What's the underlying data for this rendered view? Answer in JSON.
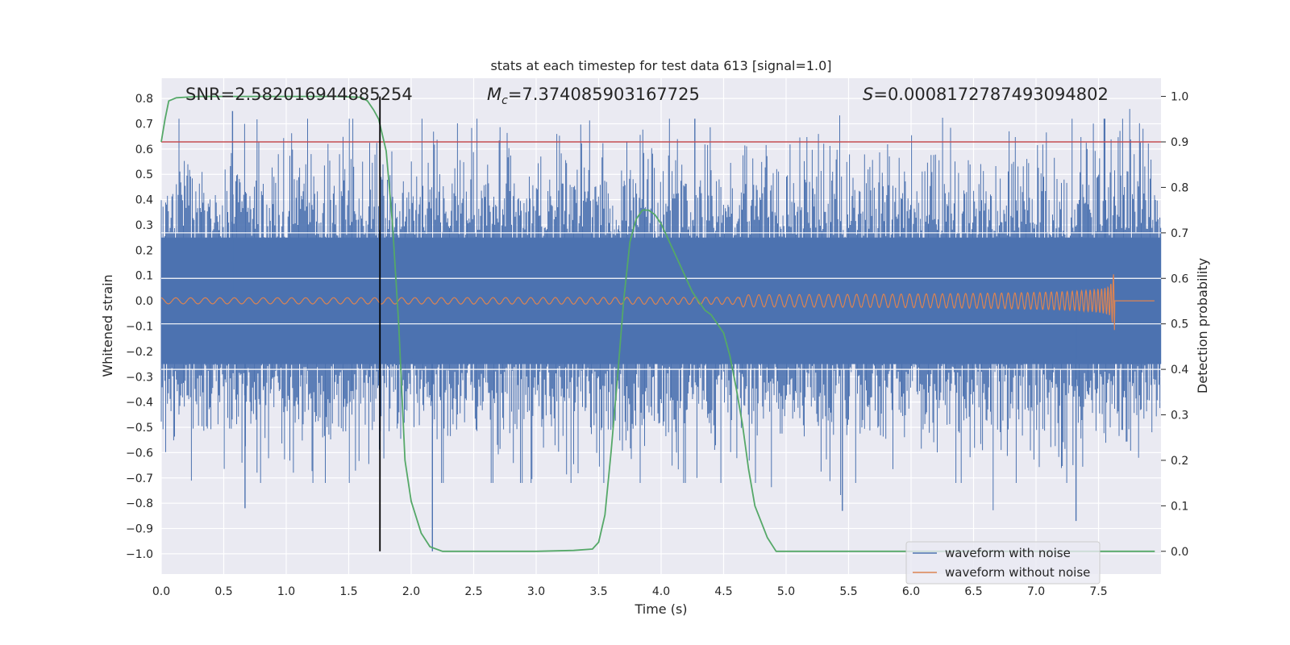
{
  "chart_data": {
    "type": "line",
    "title": "stats at each timestep for test data 613 [signal=1.0]",
    "xlabel": "Time (s)",
    "ylabel": "Whitened strain",
    "y2label": "Detection probability",
    "xlim": [
      0,
      8
    ],
    "ylim": [
      -1.08,
      0.88
    ],
    "y2lim": [
      -0.05,
      1.04
    ],
    "xticks": [
      0.0,
      0.5,
      1.0,
      1.5,
      2.0,
      2.5,
      3.0,
      3.5,
      4.0,
      4.5,
      5.0,
      5.5,
      6.0,
      6.5,
      7.0,
      7.5
    ],
    "xtick_labels": [
      "0.0",
      "0.5",
      "1.0",
      "1.5",
      "2.0",
      "2.5",
      "3.0",
      "3.5",
      "4.0",
      "4.5",
      "5.0",
      "5.5",
      "6.0",
      "6.5",
      "7.0",
      "7.5"
    ],
    "yticks": [
      0.8,
      0.7,
      0.6,
      0.5,
      0.4,
      0.3,
      0.2,
      0.1,
      0.0,
      -0.1,
      -0.2,
      -0.3,
      -0.4,
      -0.5,
      -0.6,
      -0.7,
      -0.8,
      -0.9,
      -1.0
    ],
    "ytick_labels": [
      "0.8",
      "0.7",
      "0.6",
      "0.5",
      "0.4",
      "0.3",
      "0.2",
      "0.1",
      "0.0",
      "−0.1",
      "−0.2",
      "−0.3",
      "−0.4",
      "−0.5",
      "−0.6",
      "−0.7",
      "−0.8",
      "−0.9",
      "−1.0"
    ],
    "y2ticks": [
      1.0,
      0.9,
      0.8,
      0.7,
      0.6,
      0.5,
      0.4,
      0.3,
      0.2,
      0.1,
      0.0
    ],
    "y2tick_labels": [
      "1.0",
      "0.9",
      "0.8",
      "0.7",
      "0.6",
      "0.5",
      "0.4",
      "0.3",
      "0.2",
      "0.1",
      "0.0"
    ],
    "annotations": {
      "snr": "SNR=2.582016944885254",
      "mc_symbol": "M",
      "mc_sub": "c",
      "mc_value": "=7.374085903167725",
      "s_symbol": "S",
      "s_value": "=0.0008172787493094802"
    },
    "threshold": 0.9,
    "marker_time": 1.75,
    "series": [
      {
        "name": "waveform with noise",
        "color": "#4c72b0",
        "axis": "left",
        "description": "whitened noisy strain, core band about ±0.25 with peaks to about ±0.8",
        "band": [
          -0.25,
          0.25
        ],
        "noted_peaks": [
          [
            0.57,
            0.75
          ],
          [
            0.67,
            -0.82
          ],
          [
            2.17,
            -0.99
          ],
          [
            4.27,
            0.72
          ],
          [
            5.45,
            -0.83
          ],
          [
            7.32,
            -0.87
          ],
          [
            7.55,
            0.72
          ]
        ]
      },
      {
        "name": "waveform without noise",
        "color": "#dd8452",
        "axis": "left",
        "description": "chirp signal, amplitude growing until merger near 7.63 s",
        "merger_time": 7.63,
        "peak_amplitude": 0.07
      },
      {
        "name": "detection probability",
        "color": "#55a868",
        "axis": "right",
        "x": [
          0.0,
          0.03,
          0.06,
          0.12,
          0.3,
          0.6,
          1.0,
          1.4,
          1.6,
          1.65,
          1.7,
          1.74,
          1.8,
          1.85,
          1.9,
          1.95,
          2.0,
          2.08,
          2.15,
          2.25,
          2.5,
          3.0,
          3.3,
          3.45,
          3.5,
          3.55,
          3.6,
          3.65,
          3.7,
          3.75,
          3.8,
          3.85,
          3.9,
          3.95,
          4.0,
          4.05,
          4.1,
          4.15,
          4.2,
          4.25,
          4.3,
          4.35,
          4.4,
          4.45,
          4.5,
          4.55,
          4.6,
          4.65,
          4.7,
          4.75,
          4.85,
          4.92,
          5.0,
          6.0,
          7.0,
          7.95
        ],
        "y": [
          0.9,
          0.95,
          0.99,
          0.997,
          1.0,
          1.0,
          1.0,
          1.0,
          0.998,
          0.99,
          0.97,
          0.95,
          0.88,
          0.72,
          0.5,
          0.2,
          0.11,
          0.04,
          0.01,
          0.0,
          0.0,
          0.0,
          0.002,
          0.005,
          0.02,
          0.08,
          0.22,
          0.38,
          0.55,
          0.68,
          0.73,
          0.75,
          0.75,
          0.74,
          0.72,
          0.69,
          0.66,
          0.63,
          0.6,
          0.57,
          0.55,
          0.53,
          0.52,
          0.5,
          0.48,
          0.43,
          0.36,
          0.28,
          0.18,
          0.1,
          0.03,
          0.0,
          0.0,
          0.0,
          0.0,
          0.0
        ]
      }
    ],
    "legend": {
      "position": "lower-right",
      "entries": [
        {
          "label": "waveform with noise",
          "color": "#4c72b0"
        },
        {
          "label": "waveform without noise",
          "color": "#dd8452"
        }
      ]
    }
  }
}
